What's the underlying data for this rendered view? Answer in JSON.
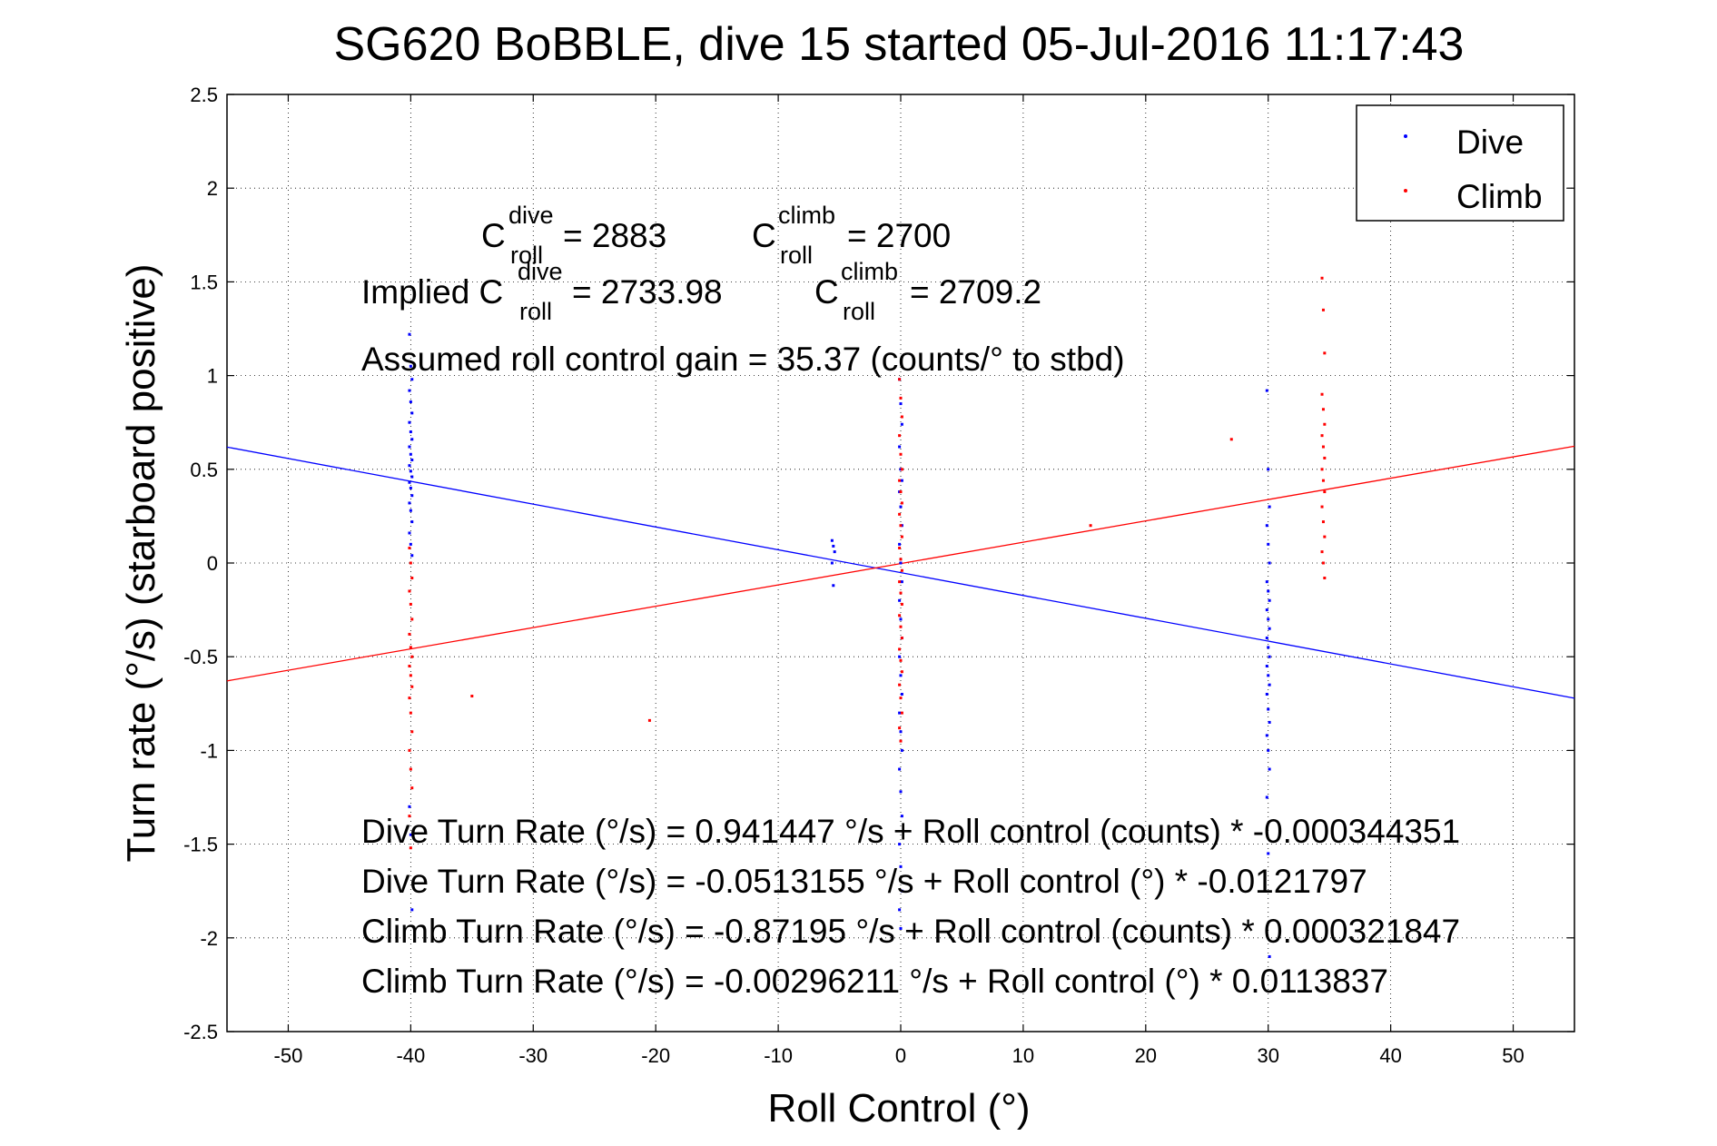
{
  "chart_data": {
    "type": "scatter",
    "title": "SG620 BoBBLE, dive 15 started 05-Jul-2016 11:17:43",
    "xlabel": "Roll Control (°)",
    "ylabel": "Turn rate (°/s) (starboard positive)",
    "xlim": [
      -55,
      55
    ],
    "ylim": [
      -2.5,
      2.5
    ],
    "xticks": [
      -50,
      -40,
      -30,
      -20,
      -10,
      0,
      10,
      20,
      30,
      40,
      50
    ],
    "yticks": [
      -2.5,
      -2,
      -1.5,
      -1,
      -0.5,
      0,
      0.5,
      1,
      1.5,
      2,
      2.5
    ],
    "grid": true,
    "legend_position": "top-right",
    "series": [
      {
        "name": "Dive",
        "color": "#0000ff",
        "marker": "point",
        "clusters": [
          {
            "x": -40,
            "y_values": [
              1.22,
              1.05,
              0.98,
              0.92,
              0.86,
              0.8,
              0.75,
              0.7,
              0.66,
              0.62,
              0.58,
              0.55,
              0.52,
              0.49,
              0.46,
              0.43,
              0.4,
              0.36,
              0.32,
              0.28,
              0.22,
              0.16,
              0.1,
              0.04,
              -1.3,
              -1.45,
              -1.85
            ]
          },
          {
            "x": -5.5,
            "y_values": [
              0.12,
              0.09,
              0.06,
              0.0,
              -0.12
            ]
          },
          {
            "x": 0,
            "y_values": [
              0.98,
              0.85,
              0.74,
              0.62,
              0.5,
              0.44,
              0.38,
              0.3,
              0.2,
              0.1,
              0.0,
              -0.1,
              -0.2,
              -0.3,
              -0.4,
              -0.5,
              -0.6,
              -0.7,
              -0.8,
              -0.9,
              -1.0,
              -1.1,
              -1.22,
              -1.35,
              -1.5,
              -1.62,
              -1.75,
              -1.85,
              -1.95
            ]
          },
          {
            "x": 30,
            "y_values": [
              0.92,
              0.5,
              0.3,
              0.2,
              0.1,
              0.0,
              -0.1,
              -0.15,
              -0.2,
              -0.25,
              -0.3,
              -0.35,
              -0.4,
              -0.45,
              -0.5,
              -0.55,
              -0.6,
              -0.65,
              -0.7,
              -0.78,
              -0.85,
              -0.92,
              -1.0,
              -1.1,
              -1.25,
              -1.55,
              -2.1
            ]
          }
        ],
        "fit": {
          "intercept": -0.0513155,
          "slope": -0.0121797
        }
      },
      {
        "name": "Climb",
        "color": "#ff0000",
        "marker": "point",
        "clusters": [
          {
            "x": -40,
            "y_values": [
              0.08,
              0.0,
              -0.08,
              -0.15,
              -0.22,
              -0.3,
              -0.38,
              -0.45,
              -0.5,
              -0.55,
              -0.6,
              -0.66,
              -0.72,
              -0.8,
              -0.9,
              -1.0,
              -1.1,
              -1.2,
              -1.35,
              -1.52
            ]
          },
          {
            "x": -35,
            "y_values": [
              -0.71
            ]
          },
          {
            "x": -20.5,
            "y_values": [
              -0.84
            ]
          },
          {
            "x": 0,
            "y_values": [
              0.98,
              0.88,
              0.78,
              0.68,
              0.58,
              0.5,
              0.44,
              0.38,
              0.32,
              0.26,
              0.2,
              0.14,
              0.08,
              0.02,
              -0.04,
              -0.1,
              -0.16,
              -0.22,
              -0.28,
              -0.34,
              -0.4,
              -0.46,
              -0.52,
              -0.58,
              -0.65,
              -0.72,
              -0.8,
              -0.88,
              -0.95
            ]
          },
          {
            "x": 15.5,
            "y_values": [
              0.2
            ]
          },
          {
            "x": 27,
            "y_values": [
              0.66
            ]
          },
          {
            "x": 34.5,
            "y_values": [
              1.52,
              1.35,
              1.12,
              0.9,
              0.82,
              0.74,
              0.68,
              0.62,
              0.56,
              0.5,
              0.44,
              0.38,
              0.3,
              0.22,
              0.14,
              0.06,
              0.0,
              -0.08
            ]
          }
        ],
        "fit": {
          "intercept": -0.00296211,
          "slope": 0.0113837
        }
      }
    ],
    "annotations": {
      "c_dive": {
        "base": "C",
        "sup": "dive",
        "sub": "roll",
        "value": " = 2883"
      },
      "c_climb": {
        "base": "C",
        "sup": "climb",
        "sub": "roll",
        "value": " = 2700"
      },
      "implied_prefix": "Implied C",
      "implied_dive": {
        "sup": "dive",
        "sub": "roll",
        "value": " = 2733.98"
      },
      "implied_climb": {
        "base": "C",
        "sup": "climb",
        "sub": "roll",
        "value": " = 2709.2"
      },
      "gain": "Assumed roll control gain = 35.37 (counts/° to stbd)",
      "eq1": "Dive Turn Rate (°/s) = 0.941447 °/s + Roll control (counts) * -0.000344351",
      "eq2": "Dive Turn Rate (°/s) = -0.0513155 °/s + Roll control (°) * -0.0121797",
      "eq3": "Climb Turn Rate (°/s) = -0.87195 °/s + Roll control (counts) * 0.000321847",
      "eq4": "Climb Turn Rate (°/s) = -0.00296211 °/s + Roll control (°) * 0.0113837"
    }
  }
}
